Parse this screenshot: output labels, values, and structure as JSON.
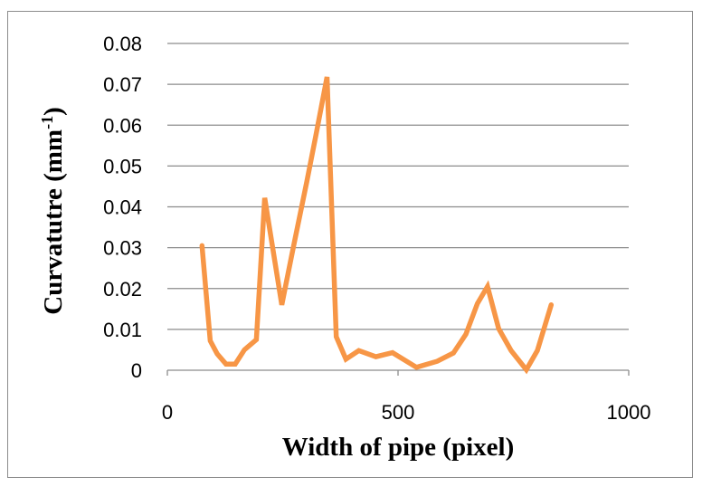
{
  "chart_data": {
    "type": "line",
    "xlabel": "Width of pipe (pixel)",
    "ylabel_main": "Curvatutre  (mm",
    "ylabel_sup": "-1",
    "ylabel_close": ")",
    "xlim": [
      0,
      1000
    ],
    "ylim": [
      0,
      0.08
    ],
    "x_ticks": [
      0,
      500,
      1000
    ],
    "x_tick_labels": [
      "0",
      "500",
      "1000"
    ],
    "y_ticks": [
      0,
      0.01,
      0.02,
      0.03,
      0.04,
      0.05,
      0.06,
      0.07,
      0.08
    ],
    "y_tick_labels": [
      "0",
      "0.01",
      "0.02",
      "0.03",
      "0.04",
      "0.05",
      "0.06",
      "0.07",
      "0.08"
    ],
    "grid": "horizontal",
    "legend": "none",
    "series_color": "#f79646",
    "grid_color": "#8c8c8c",
    "series": [
      {
        "x": [
          75,
          93,
          108,
          127,
          147,
          167,
          193,
          211,
          248,
          272,
          302,
          322,
          346,
          366,
          387,
          415,
          452,
          488,
          540,
          585,
          620,
          647,
          672,
          694,
          718,
          745,
          778,
          802,
          832
        ],
        "y": [
          0.0305,
          0.0072,
          0.004,
          0.0015,
          0.0015,
          0.005,
          0.0075,
          0.0422,
          0.016,
          0.0295,
          0.046,
          0.0575,
          0.0718,
          0.0082,
          0.0027,
          0.0048,
          0.0033,
          0.0043,
          0.0007,
          0.0022,
          0.0042,
          0.0088,
          0.0163,
          0.0205,
          0.0102,
          0.0048,
          0.0001,
          0.0048,
          0.016
        ]
      }
    ]
  }
}
